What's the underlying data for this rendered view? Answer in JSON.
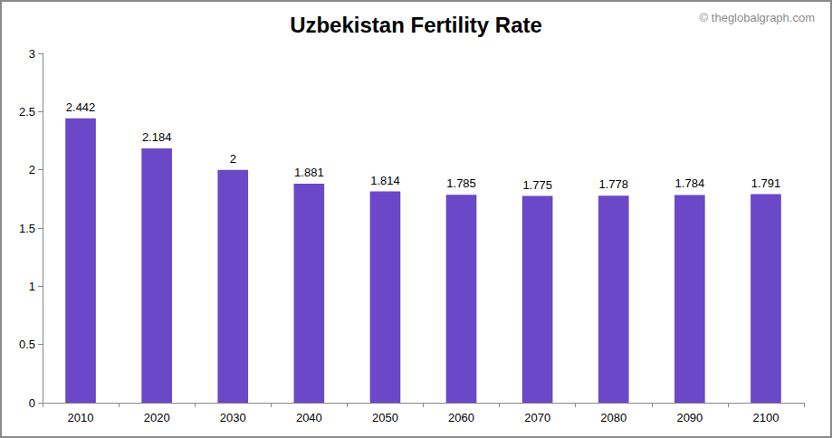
{
  "chart_data": {
    "type": "bar",
    "title": "Uzbekistan Fertility Rate",
    "annotations": [
      "© theglobalgraph.com"
    ],
    "categories": [
      "2010",
      "2020",
      "2030",
      "2040",
      "2050",
      "2060",
      "2070",
      "2080",
      "2090",
      "2100"
    ],
    "values": [
      2.442,
      2.184,
      2,
      1.881,
      1.814,
      1.785,
      1.775,
      1.778,
      1.784,
      1.791
    ],
    "color": "#6a48c8",
    "ylim": [
      0,
      3
    ],
    "yticks": [
      0,
      0.5,
      1,
      1.5,
      2,
      2.5,
      3
    ],
    "grid": false,
    "data_labels": true
  }
}
